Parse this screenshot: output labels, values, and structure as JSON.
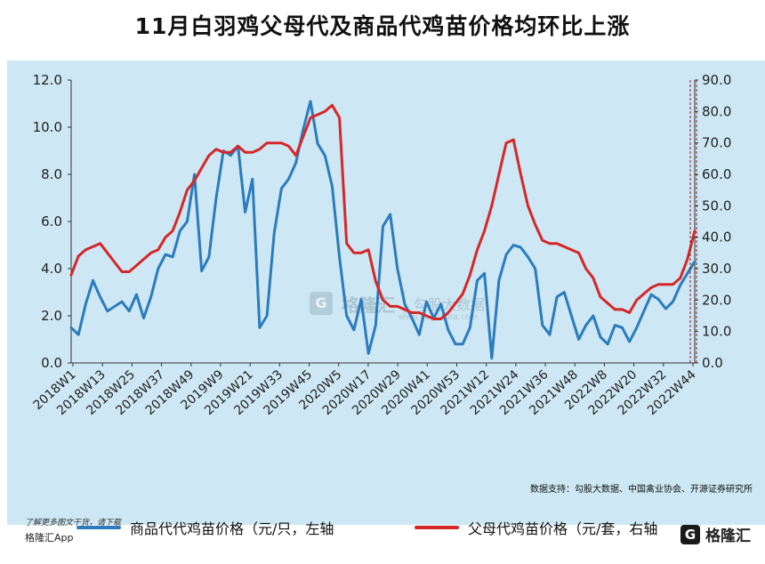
{
  "title": "11月白羽鸡父母代及商品代鸡苗价格均环比上涨",
  "legend": {
    "left_series": "商品代代鸡苗价格（元/只，左轴",
    "right_series": "父母代鸡苗价格（元/套，右轴"
  },
  "source": "数据支持：勾股大数据、中国禽业协会、开源证券研究所",
  "watermark": {
    "brand": "格隆汇",
    "site": "勾股大数据",
    "url": "www.gogudata.com"
  },
  "footer": {
    "note": "了解更多图文干货，请下载",
    "app": "格隆汇App",
    "logo_text": "格隆汇",
    "logo_icon": "G"
  },
  "colors": {
    "background": "#cde8f4",
    "left_series": "#2b7bbd",
    "right_series": "#d62728"
  },
  "chart_data": {
    "type": "line",
    "title": "11月白羽鸡父母代及商品代鸡苗价格均环比上涨",
    "x_tick_labels": [
      "2018W1",
      "2018W13",
      "2018W25",
      "2018W37",
      "2018W49",
      "2019W9",
      "2019W21",
      "2019W33",
      "2019W45",
      "2020W5",
      "2020W17",
      "2020W29",
      "2020W41",
      "2020W53",
      "2021W12",
      "2021W24",
      "2021W36",
      "2021W48",
      "2022W8",
      "2022W20",
      "2022W32",
      "2022W44"
    ],
    "y_left": {
      "ylim": [
        0,
        12
      ],
      "ticks": [
        "0.0",
        "2.0",
        "4.0",
        "6.0",
        "8.0",
        "10.0",
        "12.0"
      ]
    },
    "y_right": {
      "ylim": [
        0,
        90
      ],
      "ticks": [
        "0.0",
        "10.0",
        "20.0",
        "30.0",
        "40.0",
        "50.0",
        "60.0",
        "70.0",
        "80.0",
        "90.0"
      ]
    },
    "grid": false,
    "legend_position": "bottom",
    "series": [
      {
        "name": "商品代代鸡苗价格（元/只，左轴",
        "axis": "left",
        "x": [
          0,
          3,
          6,
          9,
          12,
          15,
          18,
          21,
          24,
          27,
          30,
          33,
          36,
          39,
          42,
          45,
          48,
          51,
          54,
          57,
          60,
          63,
          66,
          69,
          72,
          75,
          78,
          81,
          84,
          87,
          90,
          93,
          96,
          99,
          102,
          105,
          108,
          111,
          114,
          117,
          120,
          123,
          126,
          129,
          132,
          135,
          138,
          141,
          144,
          147,
          150,
          153,
          156,
          159,
          162,
          165,
          168,
          171,
          174,
          177,
          180,
          183,
          186,
          189,
          192,
          195,
          198,
          201,
          204,
          207,
          210,
          213,
          216,
          219,
          222,
          225,
          228,
          231,
          234,
          237,
          240,
          243,
          246,
          249,
          252,
          255,
          258
        ],
        "values": [
          1.5,
          1.2,
          2.5,
          3.5,
          2.8,
          2.2,
          2.4,
          2.6,
          2.2,
          2.9,
          1.9,
          2.8,
          4.0,
          4.6,
          4.5,
          5.6,
          6.0,
          8.0,
          3.9,
          4.5,
          7.0,
          9.0,
          8.8,
          9.2,
          6.4,
          7.8,
          1.5,
          2.0,
          5.5,
          7.4,
          7.8,
          8.5,
          9.9,
          11.1,
          9.3,
          8.8,
          7.5,
          4.5,
          2.0,
          1.4,
          2.7,
          0.4,
          1.6,
          5.8,
          6.3,
          4.0,
          2.5,
          1.9,
          1.2,
          2.6,
          1.9,
          2.5,
          1.4,
          0.8,
          0.8,
          1.5,
          3.5,
          3.8,
          0.2,
          3.5,
          4.6,
          5.0,
          4.9,
          4.5,
          4.0,
          1.6,
          1.2,
          2.8,
          3.0,
          2.0,
          1.0,
          1.6,
          2.0,
          1.1,
          0.8,
          1.6,
          1.5,
          0.9,
          1.5,
          2.2,
          2.9,
          2.7,
          2.3,
          2.6,
          3.3,
          3.8,
          4.3
        ]
      },
      {
        "name": "父母代鸡苗价格（元/套，右轴",
        "axis": "right",
        "x": [
          0,
          3,
          6,
          9,
          12,
          15,
          18,
          21,
          24,
          27,
          30,
          33,
          36,
          39,
          42,
          45,
          48,
          51,
          54,
          57,
          60,
          63,
          66,
          69,
          72,
          75,
          78,
          81,
          84,
          87,
          90,
          93,
          96,
          99,
          102,
          105,
          108,
          111,
          114,
          117,
          120,
          123,
          126,
          129,
          132,
          135,
          138,
          141,
          144,
          147,
          150,
          153,
          156,
          159,
          162,
          165,
          168,
          171,
          174,
          177,
          180,
          183,
          186,
          189,
          192,
          195,
          198,
          201,
          204,
          207,
          210,
          213,
          216,
          219,
          222,
          225,
          228,
          231,
          234,
          237,
          240,
          243,
          246,
          249,
          252,
          255,
          258
        ],
        "values": [
          28,
          34,
          36,
          37,
          38,
          35,
          32,
          29,
          29,
          31,
          33,
          35,
          36,
          40,
          42,
          48,
          55,
          58,
          62,
          66,
          68,
          67,
          67,
          69,
          67,
          67,
          68,
          70,
          70,
          70,
          69,
          66,
          72,
          78,
          79,
          80,
          82,
          78,
          38,
          35,
          35,
          36,
          26,
          20,
          18,
          18,
          17,
          16,
          16,
          15,
          14,
          14,
          16,
          19,
          22,
          28,
          36,
          42,
          50,
          60,
          70,
          71,
          60,
          50,
          44,
          39,
          38,
          38,
          37,
          36,
          35,
          30,
          27,
          21,
          19,
          17,
          17,
          16,
          20,
          22,
          24,
          25,
          25,
          25,
          27,
          33,
          42
        ]
      }
    ]
  }
}
